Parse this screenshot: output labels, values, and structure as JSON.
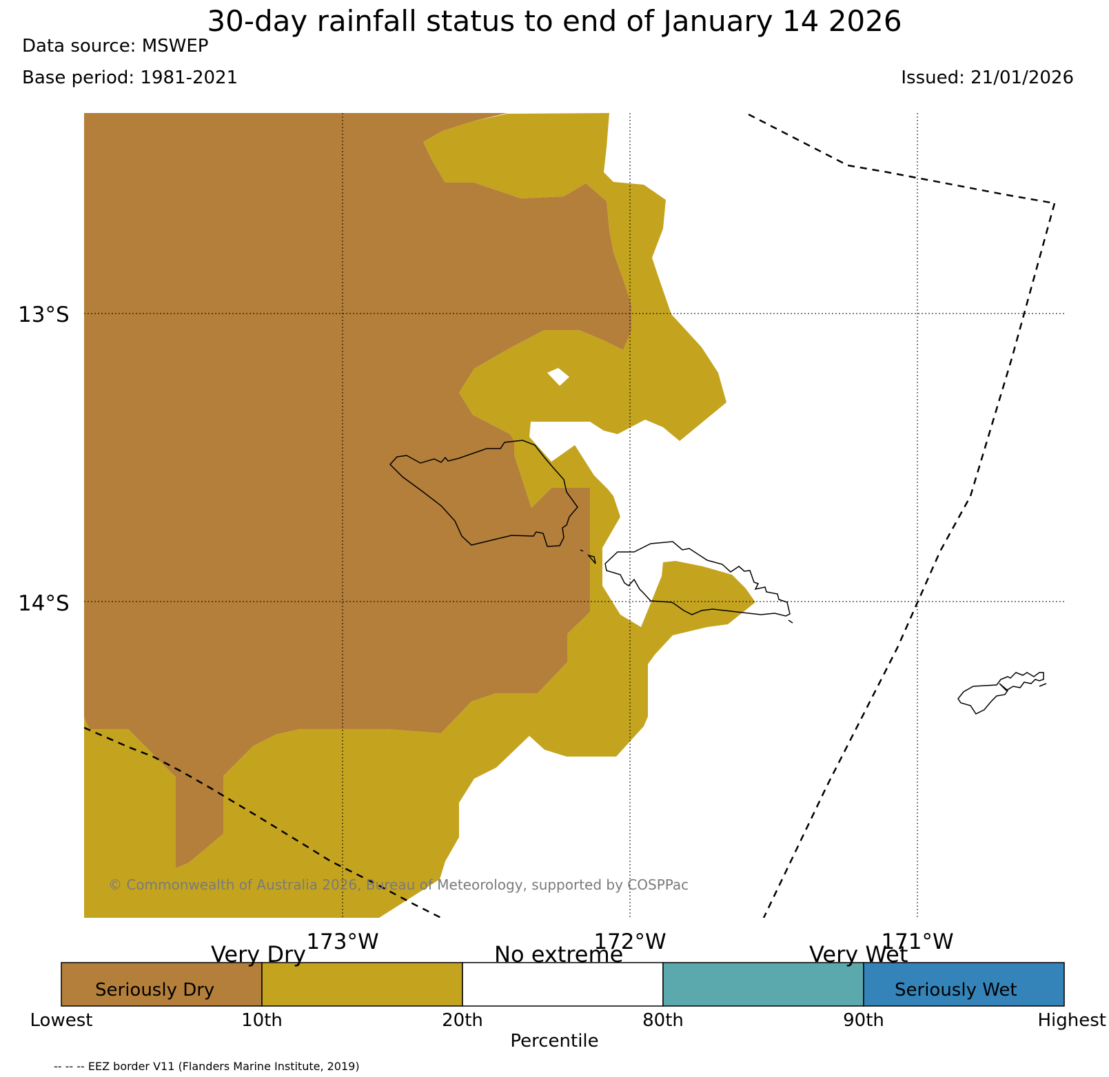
{
  "header": {
    "title": "30-day rainfall status to end of January 14 2026",
    "data_source": "Data source: MSWEP",
    "base_period": "Base period: 1981-2021",
    "issued": "Issued: 21/01/2026"
  },
  "map": {
    "lat_labels": [
      "13°S",
      "14°S"
    ],
    "lon_labels": [
      "173°W",
      "172°W",
      "171°W"
    ],
    "copyright": "© Commonwealth of Australia 2026, Bureau of Meteorology, supported by COSPPac",
    "colors": {
      "seriously_dry": "#b47f3a",
      "very_dry": "#c4a41f",
      "no_extreme": "#ffffff",
      "very_wet": "#5ba8ad",
      "seriously_wet": "#3584b9"
    }
  },
  "legend": {
    "categories": [
      "Very Dry",
      "No extreme",
      "Very Wet"
    ],
    "seriously_dry": "Seriously Dry",
    "seriously_wet": "Seriously Wet",
    "ticks": [
      "Lowest",
      "10th",
      "20th",
      "80th",
      "90th",
      "Highest"
    ],
    "axis_label": "Percentile",
    "eez_note": "-- -- -- EEZ border V11 (Flanders Marine Institute, 2019)"
  }
}
